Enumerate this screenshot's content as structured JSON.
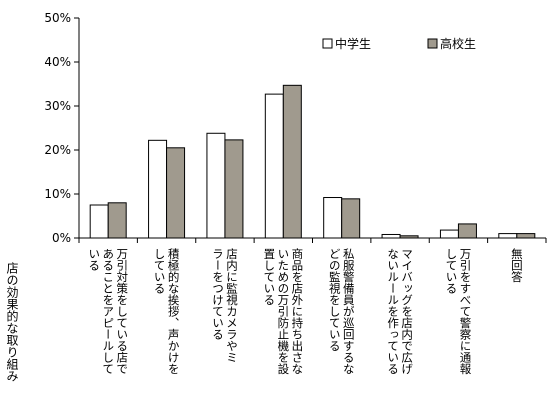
{
  "chart_data": {
    "type": "bar",
    "title": "",
    "xlabel": "店の効果的な取り組み",
    "ylabel": "",
    "ylim": [
      0,
      50
    ],
    "yticks": [
      "0%",
      "10%",
      "20%",
      "30%",
      "40%",
      "50%"
    ],
    "grid": false,
    "legend_position": "top-right",
    "categories": [
      [
        "万引対策をしている店で",
        "あることをアピールして",
        "いる"
      ],
      [
        "積極的な挨拶、声かけを",
        "している"
      ],
      [
        "店内に監視カメラやミ",
        "ラーをつけている"
      ],
      [
        "商品を店外に持ち出さな",
        "いための万引防止機を設",
        "置している"
      ],
      [
        "私服警備員が巡回するな",
        "どの監視をしている"
      ],
      [
        "マイバッグを店内で広げ",
        "ないルールを作っている"
      ],
      [
        "万引をすべて警察に通報",
        "している"
      ],
      [
        "無回答"
      ]
    ],
    "series": [
      {
        "name": "中学生",
        "color": "#ffffff",
        "values": [
          7.5,
          22.2,
          23.8,
          32.7,
          9.2,
          0.8,
          1.8,
          1.0
        ]
      },
      {
        "name": "高校生",
        "color": "#a09a8e",
        "values": [
          8.0,
          20.5,
          22.3,
          34.7,
          8.9,
          0.5,
          3.2,
          1.0
        ]
      }
    ]
  }
}
